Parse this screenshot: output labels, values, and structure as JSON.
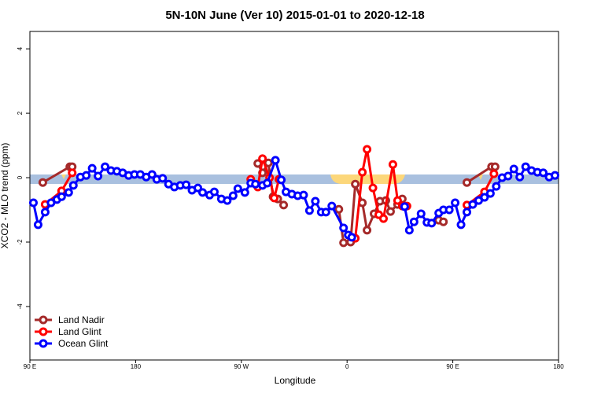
{
  "chart_data": {
    "type": "line",
    "title": "5N-10N June (Ver 10)   2015-01-01 to 2020-12-18",
    "x_label": "Longitude",
    "y_label": "XCO2 - MLO trend (ppm)",
    "xlim": [
      90,
      540
    ],
    "xticks": [
      {
        "value": 90,
        "label": "90 E"
      },
      180,
      {
        "value": 270,
        "label": "90 W"
      },
      {
        "value": 360,
        "label": "0"
      },
      {
        "value": 450,
        "label": "90 E"
      },
      {
        "value": 540,
        "label": "180"
      }
    ],
    "ylim": [
      -5.66,
      4.54
    ],
    "yticks": [
      -4,
      -2,
      0,
      2,
      4
    ],
    "legend": "bottom-left",
    "series": [
      {
        "name": "Land Nadir",
        "color": "#a52a2a",
        "x": [
          101,
          124,
          126,
          null,
          284,
          288,
          293,
          297,
          301,
          306,
          null,
          353,
          357,
          363,
          367,
          373,
          377,
          383,
          388,
          393,
          397,
          403,
          407,
          null,
          438,
          442,
          null,
          462,
          483,
          486
        ],
        "values": [
          -0.15,
          0.34,
          0.34,
          null,
          0.44,
          0.15,
          0.46,
          -0.59,
          -0.66,
          -0.85,
          null,
          -0.98,
          -2.02,
          -2.0,
          -0.2,
          -0.78,
          -1.63,
          -1.12,
          -0.73,
          -0.71,
          -1.05,
          -0.83,
          -0.66,
          null,
          -1.32,
          -1.37,
          null,
          -0.15,
          0.34,
          0.34
        ]
      },
      {
        "name": "Land Glint",
        "color": "#ff0000",
        "x": [
          103,
          117,
          126,
          null,
          278,
          284,
          288,
          294,
          298,
          302,
          null,
          367,
          373,
          377,
          382,
          387,
          391,
          399,
          403,
          407,
          411,
          null,
          462,
          477,
          485
        ],
        "values": [
          -0.83,
          -0.41,
          0.15,
          null,
          -0.05,
          -0.29,
          0.59,
          0,
          -0.63,
          -0.05,
          null,
          -1.88,
          0.17,
          0.88,
          -0.32,
          -1.15,
          -1.27,
          0.41,
          -0.71,
          -0.88,
          -0.88,
          null,
          -0.85,
          -0.44,
          0.12
        ]
      },
      {
        "name": "Ocean Glint",
        "color": "#0000ff",
        "x": [
          93,
          97,
          103,
          108,
          113,
          117,
          123,
          127,
          133,
          138,
          143,
          148,
          154,
          159,
          164,
          169,
          174,
          179,
          184,
          189,
          194,
          198,
          203,
          208,
          213,
          218,
          223,
          228,
          233,
          237,
          243,
          247,
          253,
          258,
          263,
          267,
          273,
          278,
          282,
          288,
          292,
          299,
          304,
          308,
          313,
          318,
          323,
          328,
          333,
          338,
          342,
          347,
          357,
          361,
          364,
          null,
          409,
          413,
          417,
          423,
          428,
          432,
          438,
          442,
          447,
          452,
          457,
          462,
          467,
          472,
          477,
          482,
          487,
          492,
          497,
          502,
          507,
          512,
          517,
          522,
          527,
          532,
          537
        ],
        "values": [
          -0.78,
          -1.46,
          -1.07,
          -0.78,
          -0.68,
          -0.59,
          -0.46,
          -0.24,
          0.02,
          0.07,
          0.29,
          0.05,
          0.34,
          0.22,
          0.2,
          0.15,
          0.07,
          0.1,
          0.1,
          0.02,
          0.1,
          -0.05,
          -0.02,
          -0.2,
          -0.29,
          -0.24,
          -0.22,
          -0.39,
          -0.32,
          -0.46,
          -0.54,
          -0.44,
          -0.66,
          -0.71,
          -0.56,
          -0.34,
          -0.46,
          -0.17,
          -0.2,
          -0.24,
          -0.17,
          0.54,
          -0.07,
          -0.44,
          -0.51,
          -0.56,
          -0.54,
          -1.02,
          -0.73,
          -1.07,
          -1.07,
          -0.88,
          -1.56,
          -1.78,
          -1.85,
          null,
          -0.9,
          -1.63,
          -1.37,
          -1.12,
          -1.39,
          -1.41,
          -1.1,
          -1.0,
          -1.0,
          -0.78,
          -1.46,
          -1.07,
          -0.83,
          -0.71,
          -0.61,
          -0.49,
          -0.27,
          0,
          0.05,
          0.27,
          0.02,
          0.34,
          0.22,
          0.17,
          0.15,
          0.02,
          0.07
        ]
      }
    ]
  }
}
